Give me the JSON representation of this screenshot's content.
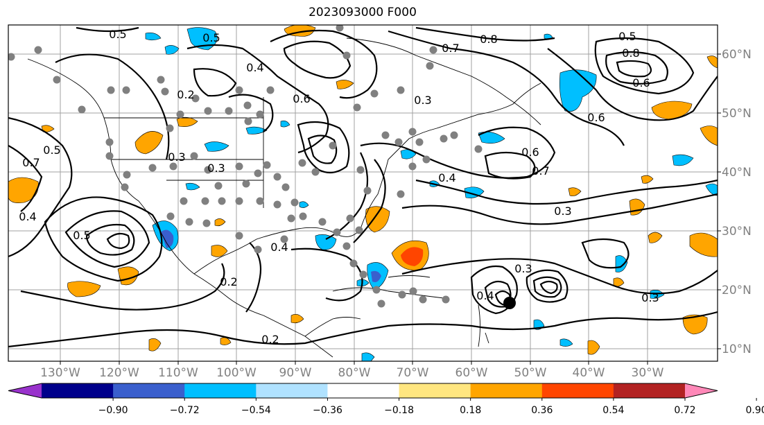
{
  "title": "2023093000 F000",
  "x_ticks": [
    "130°W",
    "120°W",
    "110°W",
    "100°W",
    "90°W",
    "80°W",
    "70°W",
    "60°W",
    "50°W",
    "40°W",
    "30°W"
  ],
  "y_ticks": [
    "60°N",
    "50°N",
    "40°N",
    "30°N",
    "20°N",
    "10°N"
  ],
  "colorbar": {
    "tick_labels": [
      "−0.90",
      "−0.72",
      "−0.54",
      "−0.36",
      "−0.18",
      "0.18",
      "0.36",
      "0.54",
      "0.72",
      "0.90"
    ],
    "colors": [
      "#9932cc",
      "#00008b",
      "#3a5fcd",
      "#00bfff",
      "#b0e2ff",
      "#ffffff",
      "#ffe680",
      "#ffa500",
      "#ff4500",
      "#b22222",
      "#ff88b8"
    ]
  },
  "contour_labels": [
    "0.5",
    "0.5",
    "0.8",
    "0.5",
    "0.8",
    "0.6",
    "0.4",
    "0.2",
    "0.6",
    "0.3",
    "0.5",
    "0.4",
    "0.7",
    "0.6",
    "0.4",
    "0.5",
    "0.2",
    "0.3",
    "0.4",
    "0.3",
    "0.6",
    "0.7",
    "0.3",
    "0.4",
    "0.3",
    "0.2",
    "0.7",
    "0.3"
  ],
  "legend_colors": {
    "land": "#ffffff",
    "contour": "#000000",
    "station": "#808080",
    "storm": "#000000"
  }
}
